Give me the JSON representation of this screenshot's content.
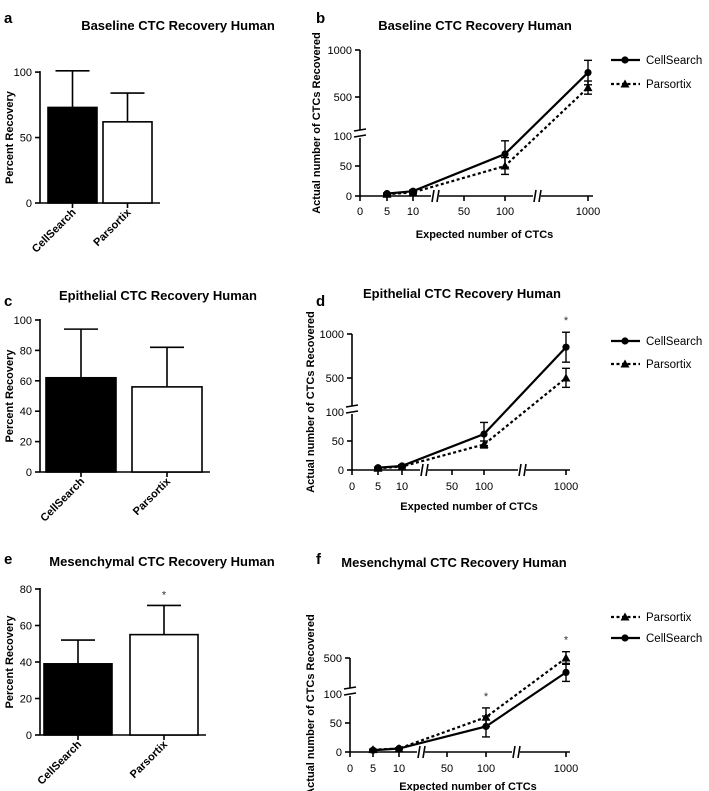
{
  "chart_data": [
    {
      "panel": "a",
      "type": "bar",
      "title": "Baseline CTC Recovery Human",
      "ylabel": "Percent Recovery",
      "xlabel": "",
      "categories": [
        "CellSearch",
        "Parsortix"
      ],
      "values": [
        73,
        62
      ],
      "errors": [
        28,
        22
      ],
      "bar_colors": [
        "#000000",
        "#ffffff"
      ],
      "ylim": [
        0,
        110
      ],
      "yticks": [
        0,
        50,
        100
      ],
      "annotations": []
    },
    {
      "panel": "b",
      "type": "line",
      "title": "Baseline CTC Recovery Human",
      "xlabel": "Expected number of CTCs",
      "ylabel": "Actual number of CTCs Recovered",
      "x": [
        5,
        10,
        100,
        1000
      ],
      "xticks": [
        "0",
        "5",
        "10",
        "50",
        "100",
        "1000"
      ],
      "yticks": [
        "0",
        "50",
        "100",
        "500",
        "1000"
      ],
      "legend_position": "right",
      "series": [
        {
          "name": "CellSearch",
          "style": "solid",
          "marker": "circle",
          "values": [
            4,
            8,
            70,
            760
          ],
          "errors": [
            1,
            2,
            22,
            130
          ]
        },
        {
          "name": "Parsortix",
          "style": "dotted",
          "marker": "triangle",
          "values": [
            3,
            6,
            50,
            600
          ],
          "errors": [
            1,
            2,
            14,
            70
          ]
        }
      ],
      "annotations": []
    },
    {
      "panel": "c",
      "type": "bar",
      "title": "Epithelial CTC Recovery Human",
      "ylabel": "Percent Recovery",
      "xlabel": "",
      "categories": [
        "CellSearch",
        "Parsortix"
      ],
      "values": [
        62,
        56
      ],
      "errors": [
        32,
        26
      ],
      "bar_colors": [
        "#000000",
        "#ffffff"
      ],
      "ylim": [
        0,
        100
      ],
      "yticks": [
        0,
        20,
        40,
        60,
        80,
        100
      ],
      "annotations": []
    },
    {
      "panel": "d",
      "type": "line",
      "title": "Epithelial CTC Recovery Human",
      "xlabel": "Expected number of CTCs",
      "ylabel": "Actual number of CTCs Recovered",
      "x": [
        5,
        10,
        100,
        1000
      ],
      "xticks": [
        "0",
        "5",
        "10",
        "50",
        "100",
        "1000"
      ],
      "yticks": [
        "0",
        "50",
        "100",
        "500",
        "1000"
      ],
      "legend_position": "right",
      "series": [
        {
          "name": "CellSearch",
          "style": "solid",
          "marker": "circle",
          "values": [
            4,
            7,
            62,
            850
          ],
          "errors": [
            1,
            2,
            20,
            170
          ]
        },
        {
          "name": "Parsortix",
          "style": "dotted",
          "marker": "triangle",
          "values": [
            3,
            6,
            44,
            500
          ],
          "errors": [
            1,
            1,
            6,
            110
          ]
        }
      ],
      "annotations": [
        {
          "x": 1000,
          "text": "*"
        }
      ]
    },
    {
      "panel": "e",
      "type": "bar",
      "title": "Mesenchymal CTC Recovery Human",
      "ylabel": "Percent Recovery",
      "xlabel": "",
      "categories": [
        "CellSearch",
        "Parsortix"
      ],
      "values": [
        39,
        55
      ],
      "errors": [
        13,
        16
      ],
      "bar_colors": [
        "#000000",
        "#ffffff"
      ],
      "ylim": [
        0,
        80
      ],
      "yticks": [
        0,
        20,
        40,
        60,
        80
      ],
      "annotations": [
        {
          "category": "Parsortix",
          "text": "*"
        }
      ]
    },
    {
      "panel": "f",
      "type": "line",
      "title": "Mesenchymal CTC Recovery Human",
      "xlabel": "Expected number of CTCs",
      "ylabel": "Actual number of CTCs Recovered",
      "x": [
        5,
        10,
        100,
        1000
      ],
      "xticks": [
        "0",
        "5",
        "10",
        "50",
        "100",
        "1000"
      ],
      "yticks": [
        "0",
        "50",
        "100",
        "500"
      ],
      "legend_position": "right",
      "series": [
        {
          "name": "Parsortix",
          "style": "dotted",
          "marker": "triangle",
          "values": [
            4,
            6,
            60,
            500
          ],
          "errors": [
            1,
            1,
            16,
            70
          ]
        },
        {
          "name": "CellSearch",
          "style": "solid",
          "marker": "circle",
          "values": [
            3,
            6,
            44,
            340
          ],
          "errors": [
            1,
            1,
            18,
            100
          ]
        }
      ],
      "annotations": [
        {
          "x": 100,
          "text": "*"
        },
        {
          "x": 1000,
          "text": "*"
        }
      ]
    }
  ]
}
